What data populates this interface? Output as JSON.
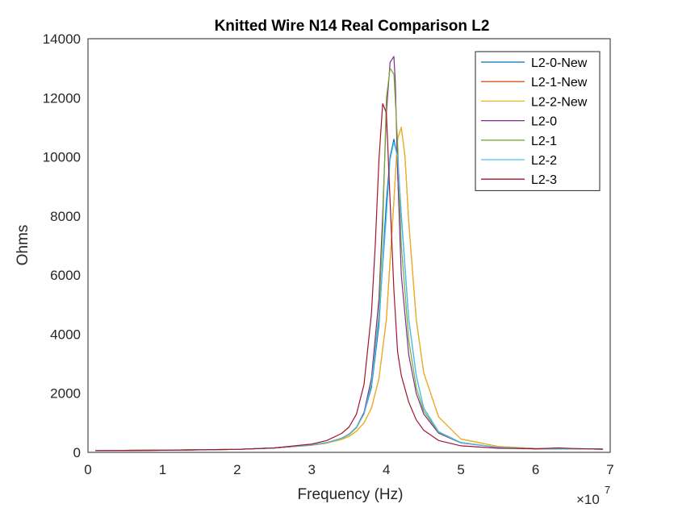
{
  "chart_data": {
    "type": "line",
    "title": "Knitted Wire N14 Real Comparison L2",
    "xlabel": "Frequency (Hz)",
    "ylabel": "Ohms",
    "x_exponent_label": "×10",
    "x_exponent_power": "7",
    "xlim": [
      0,
      7
    ],
    "ylim": [
      0,
      14000
    ],
    "x_ticks": [
      0,
      1,
      2,
      3,
      4,
      5,
      6,
      7
    ],
    "y_ticks": [
      0,
      2000,
      4000,
      6000,
      8000,
      10000,
      12000,
      14000
    ],
    "x_tick_labels": [
      "0",
      "1",
      "2",
      "3",
      "4",
      "5",
      "6",
      "7"
    ],
    "y_tick_labels": [
      "0",
      "2000",
      "4000",
      "6000",
      "8000",
      "10000",
      "12000",
      "14000"
    ],
    "grid": false,
    "legend_position": "top-right",
    "series": [
      {
        "name": "L2-0-New",
        "color": "#0072BD",
        "x": [
          0.1,
          1,
          2,
          2.5,
          3,
          3.2,
          3.4,
          3.5,
          3.6,
          3.7,
          3.8,
          3.9,
          4.0,
          4.05,
          4.1,
          4.15,
          4.2,
          4.3,
          4.4,
          4.5,
          4.7,
          5,
          5.5,
          6,
          6.5,
          6.9
        ],
        "y": [
          60,
          70,
          100,
          150,
          250,
          330,
          480,
          600,
          850,
          1300,
          2200,
          4300,
          8500,
          10000,
          10600,
          10000,
          8000,
          4500,
          2600,
          1500,
          700,
          330,
          170,
          120,
          120,
          110
        ]
      },
      {
        "name": "L2-1-New",
        "color": "#D95319",
        "x": [
          0.1,
          1,
          2,
          2.5,
          3,
          3.2,
          3.4,
          3.5,
          3.6,
          3.7,
          3.8,
          3.9,
          4.0,
          4.1,
          4.15,
          4.2,
          4.25,
          4.3,
          4.4,
          4.5,
          4.7,
          5,
          5.5,
          6,
          6.5,
          6.9
        ],
        "y": [
          60,
          70,
          100,
          150,
          240,
          310,
          440,
          540,
          720,
          1000,
          1500,
          2500,
          4500,
          8500,
          10600,
          11000,
          10000,
          7800,
          4500,
          2700,
          1200,
          450,
          200,
          130,
          120,
          110
        ]
      },
      {
        "name": "L2-2-New",
        "color": "#EDB120",
        "x": [
          0.1,
          1,
          2,
          2.5,
          3,
          3.2,
          3.4,
          3.5,
          3.6,
          3.7,
          3.8,
          3.9,
          4.0,
          4.1,
          4.15,
          4.2,
          4.25,
          4.3,
          4.4,
          4.5,
          4.7,
          5,
          5.5,
          6,
          6.5,
          6.9
        ],
        "y": [
          60,
          70,
          100,
          150,
          240,
          310,
          440,
          540,
          720,
          1000,
          1500,
          2500,
          4500,
          8500,
          10600,
          11000,
          10000,
          7800,
          4500,
          2700,
          1200,
          450,
          200,
          130,
          120,
          110
        ]
      },
      {
        "name": "L2-0",
        "color": "#7E2F8E",
        "x": [
          0.1,
          1,
          2,
          2.5,
          3,
          3.2,
          3.4,
          3.5,
          3.6,
          3.7,
          3.8,
          3.9,
          3.95,
          4.0,
          4.05,
          4.1,
          4.12,
          4.15,
          4.2,
          4.3,
          4.4,
          4.5,
          4.7,
          5,
          5.5,
          6,
          6.5,
          6.9
        ],
        "y": [
          60,
          70,
          100,
          150,
          250,
          330,
          480,
          620,
          860,
          1350,
          2500,
          5200,
          8000,
          11500,
          13200,
          13400,
          12500,
          9500,
          6000,
          3300,
          2000,
          1300,
          650,
          320,
          170,
          120,
          120,
          110
        ]
      },
      {
        "name": "L2-1",
        "color": "#77AC30",
        "x": [
          0.1,
          1,
          2,
          2.5,
          3,
          3.2,
          3.4,
          3.5,
          3.6,
          3.7,
          3.8,
          3.9,
          3.95,
          4.0,
          4.05,
          4.1,
          4.15,
          4.2,
          4.3,
          4.4,
          4.5,
          4.7,
          5,
          5.5,
          6,
          6.5,
          6.9
        ],
        "y": [
          60,
          70,
          100,
          150,
          250,
          330,
          470,
          600,
          830,
          1300,
          2300,
          4700,
          7500,
          12000,
          13000,
          12800,
          10500,
          7000,
          3800,
          2200,
          1400,
          680,
          330,
          170,
          120,
          120,
          110
        ]
      },
      {
        "name": "L2-2",
        "color": "#4DBEEE",
        "x": [
          0.1,
          1,
          2,
          2.5,
          3,
          3.2,
          3.4,
          3.5,
          3.6,
          3.7,
          3.8,
          3.9,
          4.0,
          4.05,
          4.1,
          4.15,
          4.2,
          4.3,
          4.4,
          4.5,
          4.7,
          5,
          5.5,
          6,
          6.5,
          6.9
        ],
        "y": [
          60,
          70,
          100,
          150,
          250,
          330,
          480,
          610,
          860,
          1300,
          2300,
          4500,
          8000,
          9900,
          10500,
          10000,
          8100,
          4500,
          2600,
          1500,
          700,
          330,
          170,
          120,
          120,
          110
        ]
      },
      {
        "name": "L2-3",
        "color": "#A2142F",
        "x": [
          0.1,
          1,
          2,
          2.5,
          3,
          3.2,
          3.4,
          3.5,
          3.6,
          3.7,
          3.8,
          3.85,
          3.9,
          3.95,
          4.0,
          4.05,
          4.1,
          4.15,
          4.2,
          4.3,
          4.4,
          4.5,
          4.7,
          5,
          5.5,
          6,
          6.3,
          6.5,
          6.9
        ],
        "y": [
          60,
          70,
          100,
          150,
          280,
          400,
          640,
          860,
          1300,
          2300,
          4700,
          7000,
          9900,
          11800,
          11500,
          8500,
          5500,
          3400,
          2600,
          1700,
          1100,
          750,
          400,
          220,
          140,
          120,
          150,
          130,
          110
        ]
      }
    ]
  }
}
